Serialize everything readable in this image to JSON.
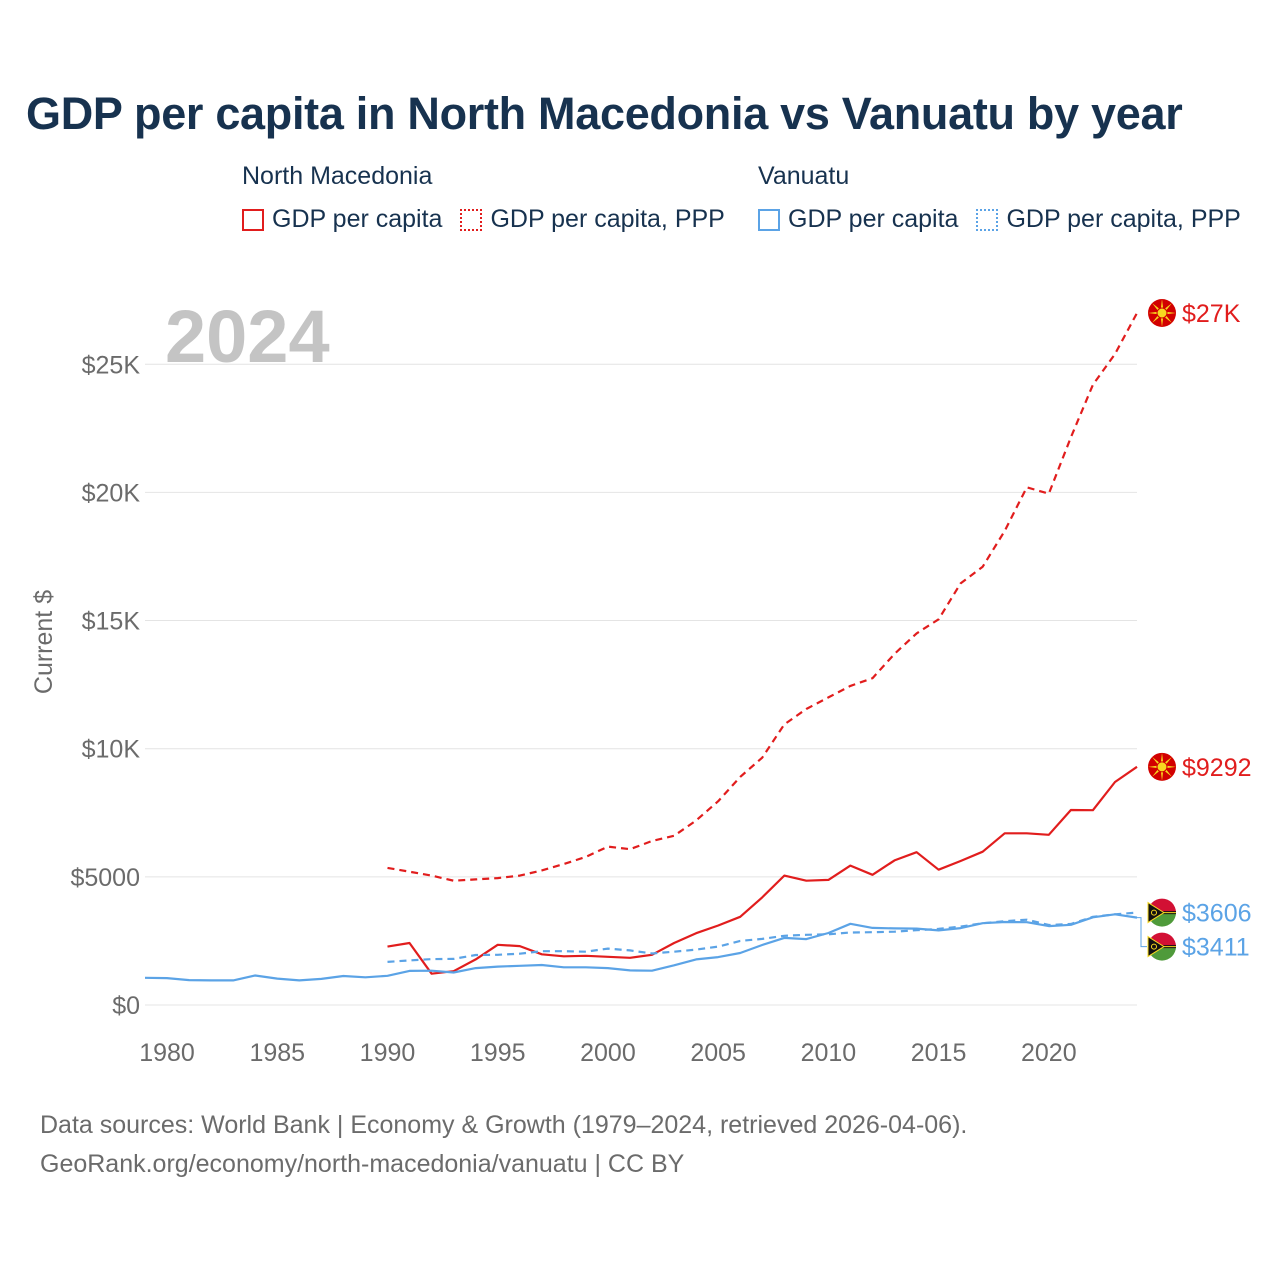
{
  "title": "GDP per capita in North Macedonia vs Vanuatu by year",
  "legend": {
    "groups": [
      {
        "name": "North Macedonia",
        "items": [
          "GDP per capita",
          "GDP per capita, PPP"
        ]
      },
      {
        "name": "Vanuatu",
        "items": [
          "GDP per capita",
          "GDP per capita, PPP"
        ]
      }
    ]
  },
  "footer": {
    "line1": "Data sources: World Bank | Economy & Growth (1979–2024, retrieved 2026-04-06).",
    "line2": "GeoRank.org/economy/north-macedonia/vanuatu | CC BY"
  },
  "colors": {
    "north_macedonia": "#e11d1d",
    "vanuatu": "#5ba3e6"
  },
  "chart_data": {
    "type": "line",
    "title": "GDP per capita in North Macedonia vs Vanuatu by year",
    "year_watermark": "2024",
    "ylabel": "Current $",
    "xlabel": "",
    "xlim": [
      1979,
      2024
    ],
    "ylim": [
      0,
      27000
    ],
    "xticks": [
      1980,
      1985,
      1990,
      1995,
      2000,
      2005,
      2010,
      2015,
      2020
    ],
    "yticks": [
      0,
      5000,
      10000,
      15000,
      20000,
      25000
    ],
    "ytick_labels": [
      "$0",
      "$5000",
      "$10K",
      "$15K",
      "$20K",
      "$25K"
    ],
    "grid": true,
    "series": [
      {
        "name": "North Macedonia GDP per capita",
        "country": "north_macedonia",
        "style": "solid",
        "x": [
          1990,
          1991,
          1992,
          1993,
          1994,
          1995,
          1996,
          1997,
          1998,
          1999,
          2000,
          2001,
          2002,
          2003,
          2004,
          2005,
          2006,
          2007,
          2008,
          2009,
          2010,
          2011,
          2012,
          2013,
          2014,
          2015,
          2016,
          2017,
          2018,
          2019,
          2020,
          2021,
          2022,
          2023,
          2024
        ],
        "values": [
          2280,
          2420,
          1220,
          1320,
          1780,
          2350,
          2300,
          1980,
          1900,
          1920,
          1880,
          1840,
          1960,
          2420,
          2800,
          3100,
          3440,
          4200,
          5050,
          4850,
          4880,
          5440,
          5080,
          5640,
          5960,
          5280,
          5620,
          5980,
          6700,
          6700,
          6640,
          7610,
          7600,
          8700,
          9292
        ],
        "end_label": "$9292"
      },
      {
        "name": "North Macedonia GDP per capita, PPP",
        "country": "north_macedonia",
        "style": "dashed",
        "x": [
          1990,
          1991,
          1992,
          1993,
          1994,
          1995,
          1996,
          1997,
          1998,
          1999,
          2000,
          2001,
          2002,
          2003,
          2004,
          2005,
          2006,
          2007,
          2008,
          2009,
          2010,
          2011,
          2012,
          2013,
          2014,
          2015,
          2016,
          2017,
          2018,
          2019,
          2020,
          2021,
          2022,
          2023,
          2024
        ],
        "values": [
          5350,
          5200,
          5050,
          4850,
          4900,
          4950,
          5050,
          5250,
          5500,
          5780,
          6180,
          6080,
          6400,
          6600,
          7200,
          7950,
          8900,
          9650,
          10950,
          11550,
          12000,
          12450,
          12750,
          13700,
          14500,
          15050,
          16450,
          17100,
          18500,
          20200,
          19950,
          22150,
          24200,
          25400,
          27000
        ],
        "end_label": "$27K"
      },
      {
        "name": "Vanuatu GDP per capita",
        "country": "vanuatu",
        "style": "solid",
        "x": [
          1979,
          1980,
          1981,
          1982,
          1983,
          1984,
          1985,
          1986,
          1987,
          1988,
          1989,
          1990,
          1991,
          1992,
          1993,
          1994,
          1995,
          1996,
          1997,
          1998,
          1999,
          2000,
          2001,
          2002,
          2003,
          2004,
          2005,
          2006,
          2007,
          2008,
          2009,
          2010,
          2011,
          2012,
          2013,
          2014,
          2015,
          2016,
          2017,
          2018,
          2019,
          2020,
          2021,
          2022,
          2023,
          2024
        ],
        "values": [
          1060,
          1050,
          970,
          960,
          960,
          1150,
          1030,
          960,
          1020,
          1130,
          1080,
          1140,
          1330,
          1340,
          1270,
          1440,
          1500,
          1530,
          1560,
          1470,
          1470,
          1440,
          1350,
          1340,
          1550,
          1780,
          1870,
          2030,
          2340,
          2620,
          2570,
          2810,
          3170,
          3010,
          2990,
          2980,
          2910,
          3000,
          3190,
          3240,
          3230,
          3080,
          3130,
          3420,
          3540,
          3411
        ],
        "end_label": "$3411"
      },
      {
        "name": "Vanuatu GDP per capita, PPP",
        "country": "vanuatu",
        "style": "dashed",
        "x": [
          1990,
          1991,
          1992,
          1993,
          1994,
          1995,
          1996,
          1997,
          1998,
          1999,
          2000,
          2001,
          2002,
          2003,
          2004,
          2005,
          2006,
          2007,
          2008,
          2009,
          2010,
          2011,
          2012,
          2013,
          2014,
          2015,
          2016,
          2017,
          2018,
          2019,
          2020,
          2021,
          2022,
          2023,
          2024
        ],
        "values": [
          1680,
          1740,
          1790,
          1800,
          1950,
          1960,
          2000,
          2100,
          2100,
          2080,
          2200,
          2130,
          2010,
          2080,
          2160,
          2280,
          2500,
          2580,
          2700,
          2740,
          2760,
          2830,
          2840,
          2860,
          2920,
          2970,
          3060,
          3190,
          3270,
          3330,
          3120,
          3160,
          3440,
          3540,
          3606
        ],
        "end_label": "$3606"
      }
    ]
  }
}
